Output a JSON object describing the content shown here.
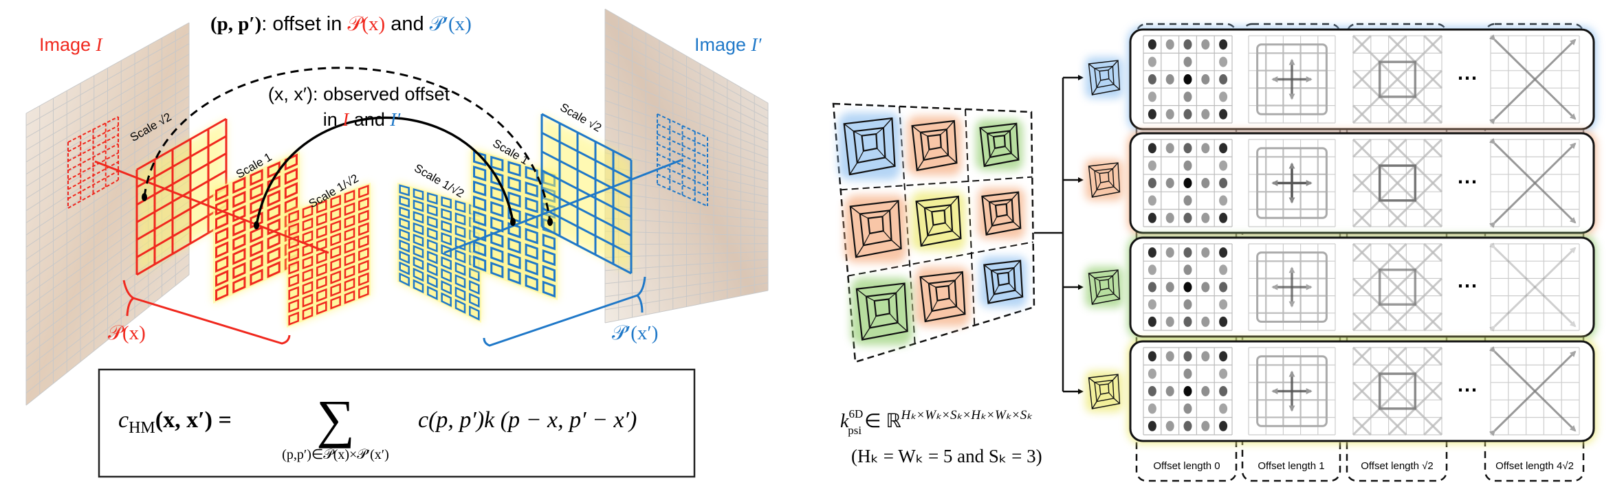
{
  "left": {
    "title": {
      "pp": "(p, p′)",
      "mid": ": offset in ",
      "px": "𝒫(x)",
      "and": " and ",
      "ppx": "𝒫′(x)"
    },
    "observed": {
      "line1": "(x, x′): observed offset",
      "in": "in ",
      "i": "I",
      "and": " and ",
      "ip": "I′"
    },
    "image_i": {
      "word": "Image ",
      "sym": "I"
    },
    "image_ip": {
      "word": "Image ",
      "sym": "I′"
    },
    "scales_left": [
      "Scale √2",
      "Scale 1",
      "Scale 1/√2"
    ],
    "scales_right": [
      "Scale 1/√2",
      "Scale 1",
      "Scale √2"
    ],
    "brace_left": "𝒫(x)",
    "brace_right": "𝒫′(x′)",
    "formula": {
      "c": "c",
      "hm": "HM",
      "lhs": "(x, x′) =",
      "sum": "∑",
      "sub": "(p,p′)∈𝒫(x)×𝒫′(x′)",
      "rhs": "c(p, p′)k (p − x, p′ − x′)"
    }
  },
  "right": {
    "kernel": {
      "k": "k",
      "sup": "6D",
      "sub": "psi",
      "in": "∈ ℝ",
      "dims": "Hₖ×Wₖ×Sₖ×Hₖ×Wₖ×Sₖ"
    },
    "constraint": "(Hₖ = Wₖ = 5 and Sₖ = 3)",
    "columns": [
      "Offset length 0",
      "Offset length 1",
      "Offset length √2",
      "Offset length 4√2"
    ],
    "ellipsis": "⋯"
  },
  "colors": {
    "red": "#f0281e",
    "blue": "#1f78c8",
    "yellow_glow": "#fff46a",
    "row_glows": [
      "#9cc7f2",
      "#f6b48a",
      "#9fd37f",
      "#eeea78"
    ],
    "cube_grid": [
      [
        "#9cc7f2",
        "#f6b48a",
        "#9fd37f"
      ],
      [
        "#f6b48a",
        "#eeea78",
        "#f6b48a"
      ],
      [
        "#9fd37f",
        "#f6b48a",
        "#9cc7f2"
      ]
    ]
  }
}
